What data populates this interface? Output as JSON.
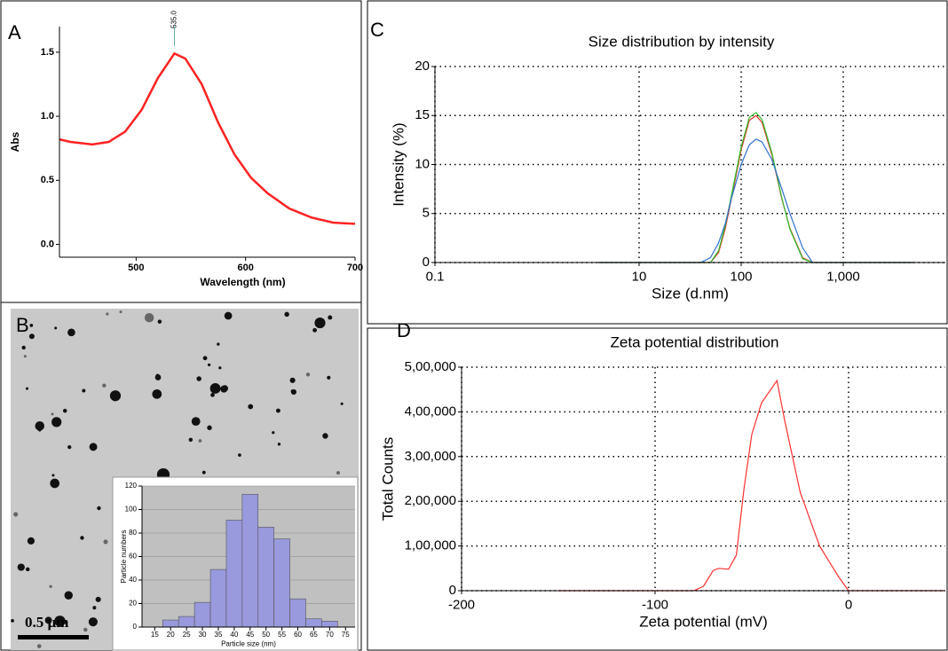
{
  "image": {
    "panel_label": "B",
    "scale_bar": "0.5 µm"
  },
  "chart_data": [
    {
      "type": "line",
      "panel_label": "A",
      "annotation": {
        "text": "535.0",
        "x": 535
      },
      "x_label": "Wavelength (nm)",
      "y_label": "Abs",
      "x": [
        430,
        440,
        460,
        475,
        490,
        505,
        520,
        535,
        545,
        560,
        575,
        590,
        605,
        620,
        640,
        660,
        680,
        700
      ],
      "series": [
        {
          "color": "#ff2222",
          "values": [
            0.82,
            0.8,
            0.78,
            0.8,
            0.88,
            1.05,
            1.3,
            1.49,
            1.45,
            1.25,
            0.95,
            0.7,
            0.52,
            0.4,
            0.28,
            0.21,
            0.17,
            0.16
          ]
        }
      ],
      "xlim": [
        430,
        700
      ],
      "ylim": [
        -0.1,
        1.7
      ],
      "xticks": [
        500,
        600,
        700
      ],
      "yticks": [
        {
          "value": 0,
          "label": "0.0"
        },
        {
          "value": 0.5,
          "label": "0.5"
        },
        {
          "value": 1,
          "label": "1.0"
        },
        {
          "value": 1.5,
          "label": "1.5"
        }
      ],
      "grid": false
    },
    {
      "type": "histogram",
      "x_label": "Particle size (nm)",
      "y_label": "Particle numbers",
      "bins": [
        17.5,
        22.5,
        27.5,
        32.5,
        37.5,
        42.5,
        47.5,
        52.5,
        57.5,
        62.5,
        67.5,
        72.5
      ],
      "values": [
        6,
        9,
        21,
        49,
        91,
        113,
        85,
        75,
        24,
        7,
        5
      ],
      "color": "#9999dd",
      "background": "#c0c0c0",
      "xlim": [
        11,
        78
      ],
      "ylim": [
        0,
        120
      ],
      "xticks": [
        15,
        20,
        25,
        30,
        35,
        40,
        45,
        50,
        55,
        60,
        65,
        70,
        75
      ],
      "yticks": [
        0,
        20,
        40,
        60,
        80,
        100,
        120
      ],
      "grid": true
    },
    {
      "type": "line",
      "panel_label": "C",
      "title": "Size distribution by intensity",
      "x_label": "Size (d.nm)",
      "y_label": "Intensity (%)",
      "log_x": true,
      "x": [
        4,
        40,
        50,
        60,
        70,
        80,
        100,
        120,
        140,
        160,
        200,
        250,
        300,
        400,
        500,
        5000
      ],
      "series": [
        {
          "color": "#e03020",
          "values": [
            0,
            0,
            0,
            1,
            3.5,
            6.5,
            11.5,
            14.5,
            15,
            14.3,
            11,
            6.5,
            3.5,
            0.5,
            0,
            0
          ]
        },
        {
          "color": "#30c030",
          "values": [
            0,
            0,
            0,
            1.2,
            3.8,
            6.8,
            11.8,
            14.8,
            15.3,
            14.6,
            11.2,
            6.6,
            3.4,
            0.4,
            0,
            0
          ]
        },
        {
          "color": "#3070d0",
          "values": [
            0,
            0,
            0.5,
            2,
            4,
            6.5,
            10,
            12,
            12.6,
            12.3,
            10.5,
            7.5,
            5,
            1.5,
            0,
            0
          ]
        }
      ],
      "xlim": [
        0.1,
        10000
      ],
      "xticks": [
        0.1,
        10,
        100,
        {
          "value": 1000,
          "label": "1,000"
        }
      ],
      "ylim": [
        0,
        20
      ],
      "yticks": [
        0,
        5,
        10,
        15,
        20
      ],
      "grid": true
    },
    {
      "type": "line",
      "panel_label": "D",
      "title": "Zeta potential distribution",
      "x_label": "Zeta potential (mV)",
      "y_label": "Total Counts",
      "x": [
        -150,
        -80,
        -75,
        -70,
        -67,
        -62,
        -58,
        -54,
        -50,
        -45,
        -37,
        -33,
        -25,
        -15,
        -5,
        0,
        50
      ],
      "series": [
        {
          "color": "#ff3030",
          "values": [
            0,
            0,
            10000,
            45000,
            50000,
            48000,
            80000,
            230000,
            350000,
            420000,
            470000,
            380000,
            220000,
            100000,
            30000,
            0,
            0
          ]
        }
      ],
      "xlim": [
        -200,
        50
      ],
      "xticks": [
        -200,
        -100,
        0
      ],
      "ylim": [
        0,
        500000
      ],
      "yticks": [
        0,
        {
          "value": 100000,
          "label": "1,00,000"
        },
        {
          "value": 200000,
          "label": "2,00,000"
        },
        {
          "value": 300000,
          "label": "3,00,000"
        },
        {
          "value": 400000,
          "label": "4,00,000"
        },
        {
          "value": 500000,
          "label": "5,00,000"
        }
      ],
      "grid": true
    }
  ]
}
